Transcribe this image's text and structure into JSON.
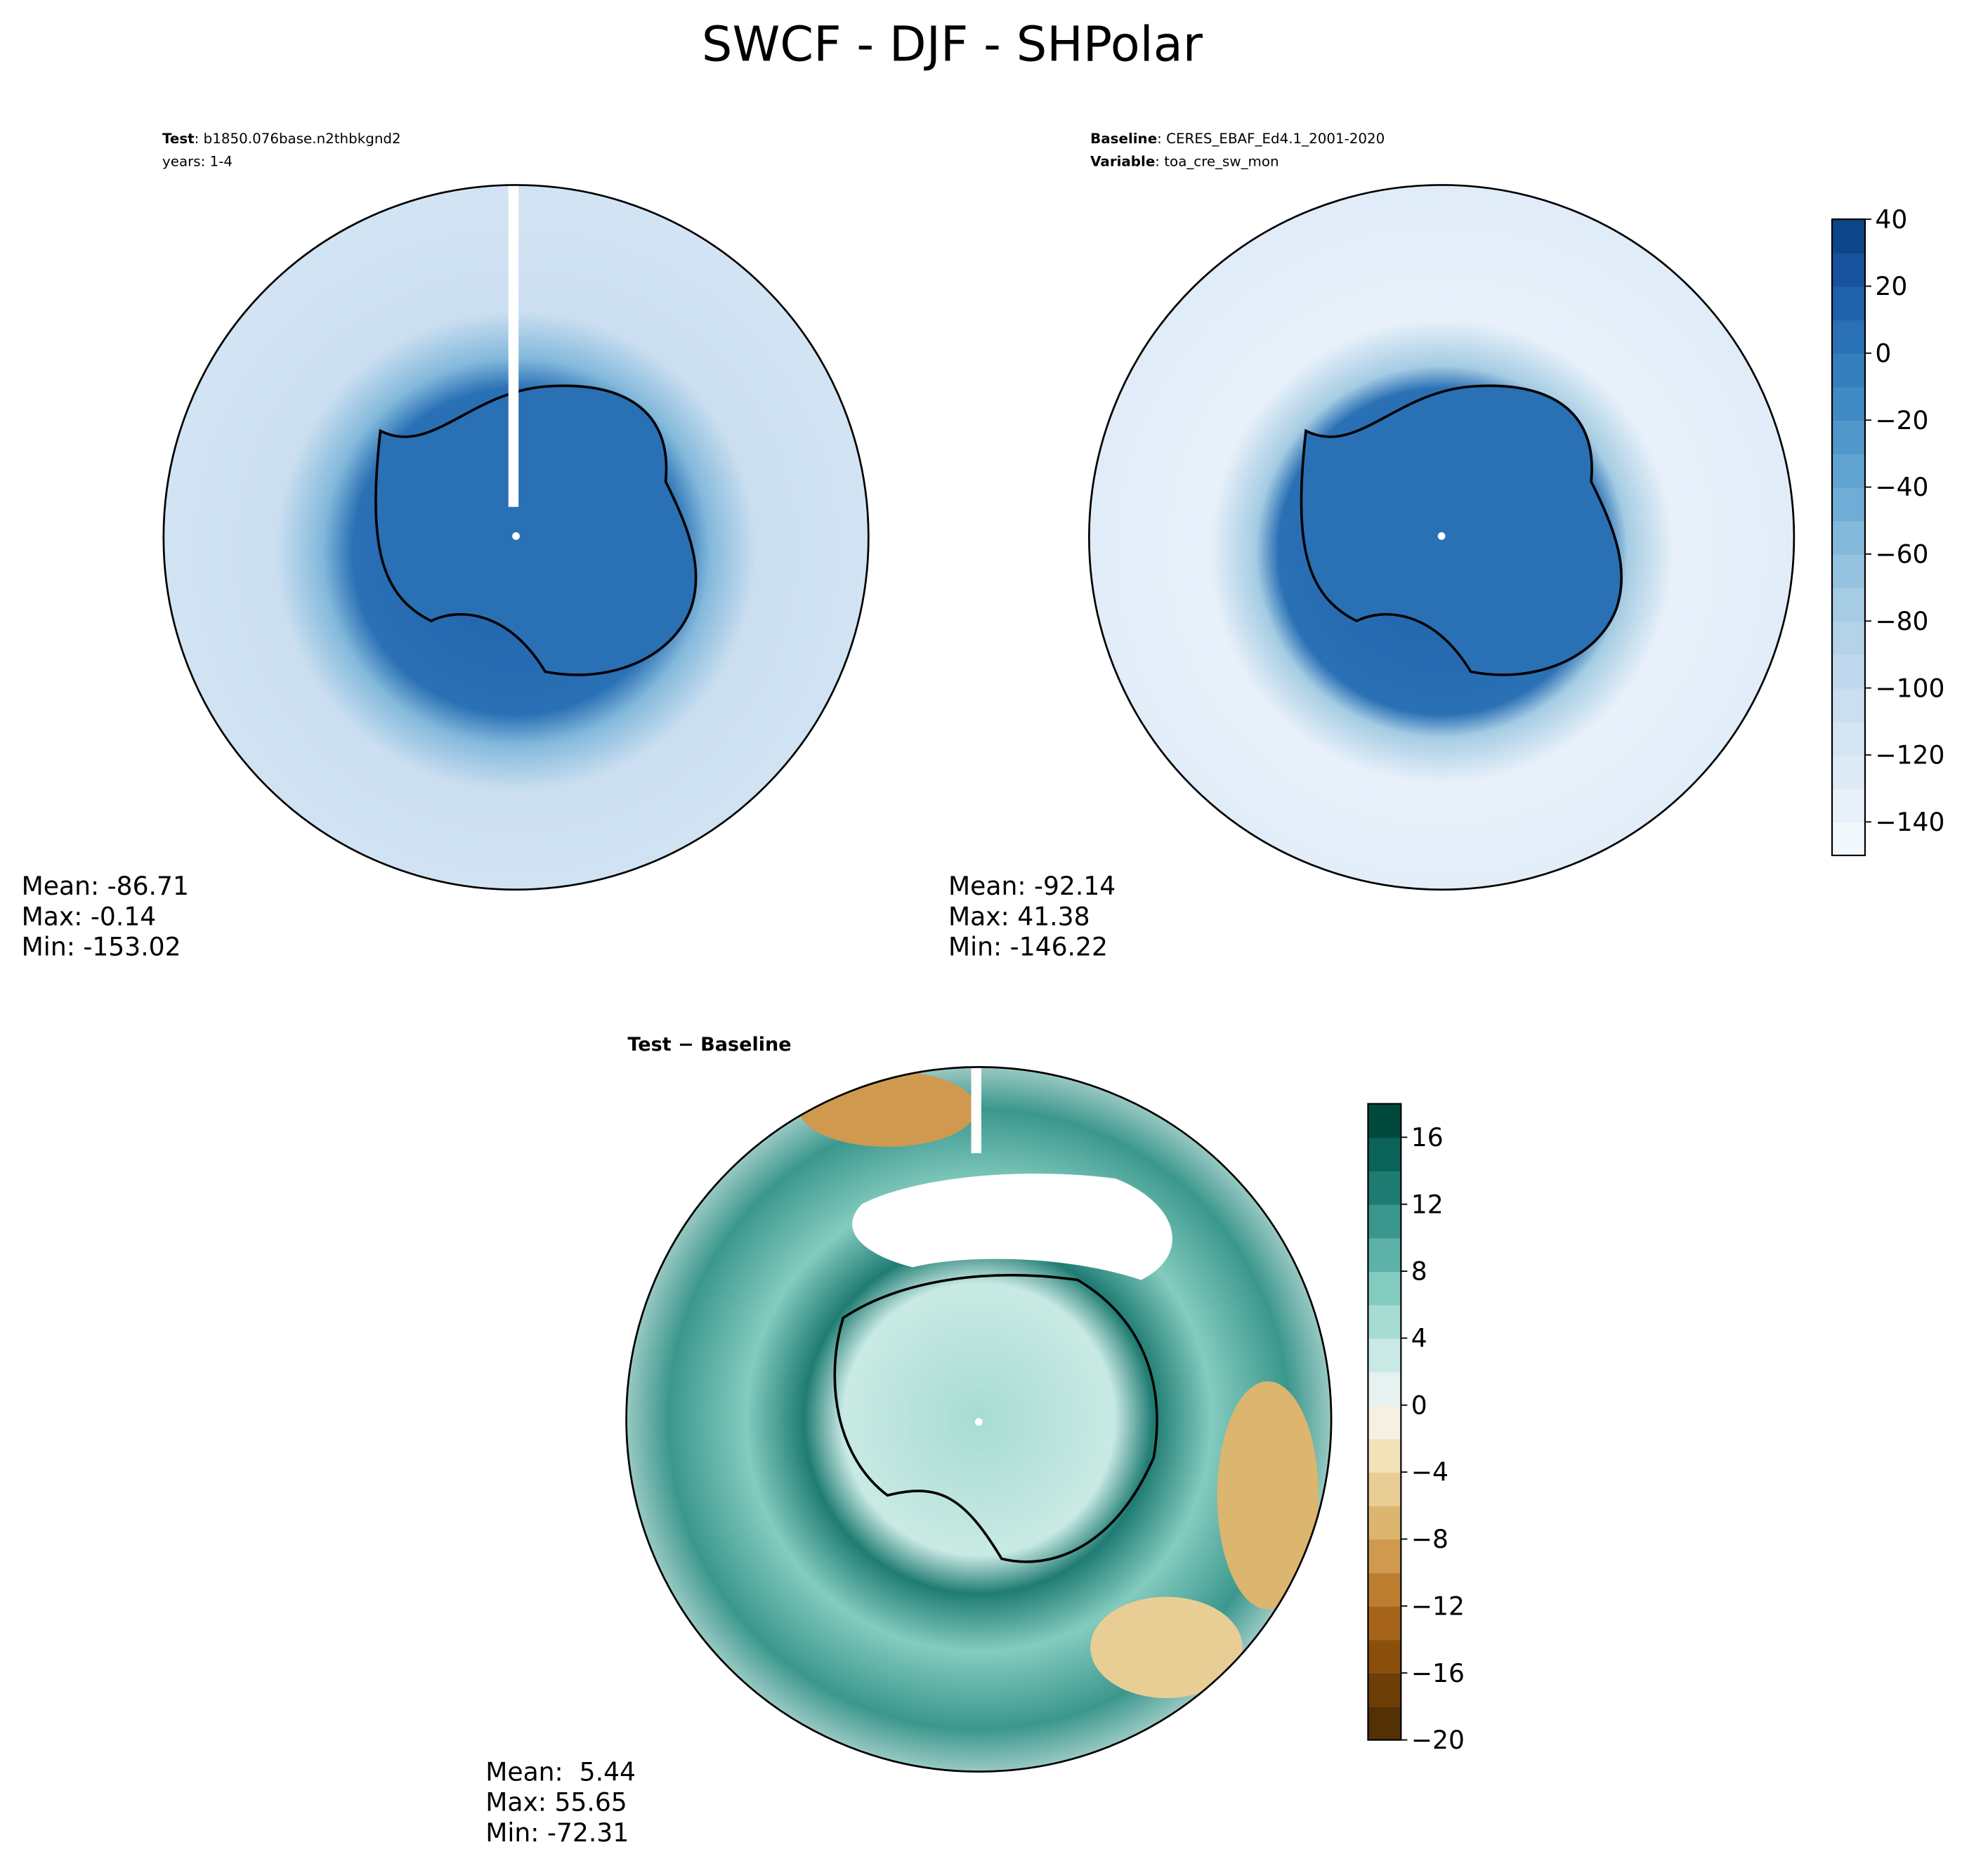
{
  "title": "SWCF - DJF - SHPolar",
  "panels": [
    {
      "header": [
        {
          "bold": "Test",
          "text": ": b1850.076base.n2thbkgnd2"
        },
        {
          "text": "years: 1-4"
        }
      ],
      "stats": [
        "Mean: -86.71",
        "Max: -0.14",
        "Min: -153.02"
      ]
    },
    {
      "header": [
        {
          "bold": "Baseline",
          "text": ": CERES_EBAF_Ed4.1_2001-2020"
        },
        {
          "bold": "Variable",
          "text": ": toa_cre_sw_mon"
        }
      ],
      "stats": [
        "Mean: -92.14",
        "Max: 41.38",
        "Min: -146.22"
      ]
    },
    {
      "header": [
        {
          "bold": "Test − Baseline"
        }
      ],
      "stats": [
        "Mean:  5.44",
        "Max: 55.65",
        "Min: -72.31"
      ]
    }
  ],
  "colorbars": [
    {
      "lim": [
        -150,
        40
      ],
      "ticks": [
        {
          "value": -140,
          "label": "−140"
        },
        {
          "value": -120,
          "label": "−120"
        },
        {
          "value": -100,
          "label": "−100"
        },
        {
          "value": -80,
          "label": "−80"
        },
        {
          "value": -60,
          "label": "−60"
        },
        {
          "value": -40,
          "label": "−40"
        },
        {
          "value": -20,
          "label": "−20"
        },
        0,
        20,
        40
      ],
      "colors": [
        "#f3f8fd",
        "#e8f1fa",
        "#deebf7",
        "#d4e5f4",
        "#cbdff1",
        "#c0d8ed",
        "#b4d3e9",
        "#a5cce3",
        "#95c3df",
        "#83b9db",
        "#6fadd6",
        "#60a3d1",
        "#5097ca",
        "#428ac3",
        "#357ebd",
        "#2a70b5",
        "#1f62aa",
        "#16539c",
        "#0d4589"
      ]
    },
    {
      "lim": [
        -20,
        18
      ],
      "ticks": [
        {
          "value": -20,
          "label": "−20"
        },
        {
          "value": -16,
          "label": "−16"
        },
        {
          "value": -12,
          "label": "−12"
        },
        {
          "value": -8,
          "label": "−8"
        },
        {
          "value": -4,
          "label": "−4"
        },
        0,
        4,
        8,
        12,
        16
      ],
      "colors": [
        "#543005",
        "#6e3e07",
        "#8a500b",
        "#a6651b",
        "#bb7e2f",
        "#cf9a4f",
        "#dcb56f",
        "#e8ce95",
        "#f2e2ba",
        "#f5f0e1",
        "#e6f2ef",
        "#c9eae4",
        "#a7dcd2",
        "#84cbbf",
        "#5eb1a6",
        "#3b978d",
        "#1f7c73",
        "#0b6258",
        "#01493d"
      ]
    }
  ]
}
